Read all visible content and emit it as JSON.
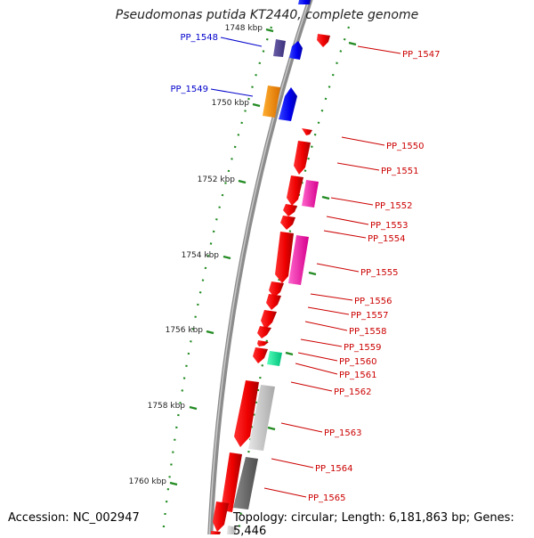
{
  "title": "Pseudomonas putida KT2440, complete genome",
  "footer": {
    "accession": "Accession: NC_002947",
    "topology": "Topology: circular; Length: 6,181,863 bp; Genes: 5,446"
  },
  "kbp_labels": [
    "1748 kbp",
    "1750 kbp",
    "1752 kbp",
    "1754 kbp",
    "1756 kbp",
    "1758 kbp",
    "1760 kbp"
  ],
  "gene_labels": [
    {
      "name": "PP_1548",
      "strand": "+"
    },
    {
      "name": "PP_1549",
      "strand": "+"
    },
    {
      "name": "PP_1547",
      "strand": "-"
    },
    {
      "name": "PP_1550",
      "strand": "-"
    },
    {
      "name": "PP_1551",
      "strand": "-"
    },
    {
      "name": "PP_1552",
      "strand": "-"
    },
    {
      "name": "PP_1553",
      "strand": "-"
    },
    {
      "name": "PP_1554",
      "strand": "-"
    },
    {
      "name": "PP_1555",
      "strand": "-"
    },
    {
      "name": "PP_1556",
      "strand": "-"
    },
    {
      "name": "PP_1557",
      "strand": "-"
    },
    {
      "name": "PP_1558",
      "strand": "-"
    },
    {
      "name": "PP_1559",
      "strand": "-"
    },
    {
      "name": "PP_1560",
      "strand": "-"
    },
    {
      "name": "PP_1561",
      "strand": "-"
    },
    {
      "name": "PP_1562",
      "strand": "-"
    },
    {
      "name": "PP_1563",
      "strand": "-"
    },
    {
      "name": "PP_1564",
      "strand": "-"
    },
    {
      "name": "PP_1565",
      "strand": "-"
    }
  ],
  "colors": {
    "plus_label": "#0000cc",
    "minus_label": "#cc0000",
    "tick": "#228b22",
    "backbone": "#8c8c8c"
  }
}
